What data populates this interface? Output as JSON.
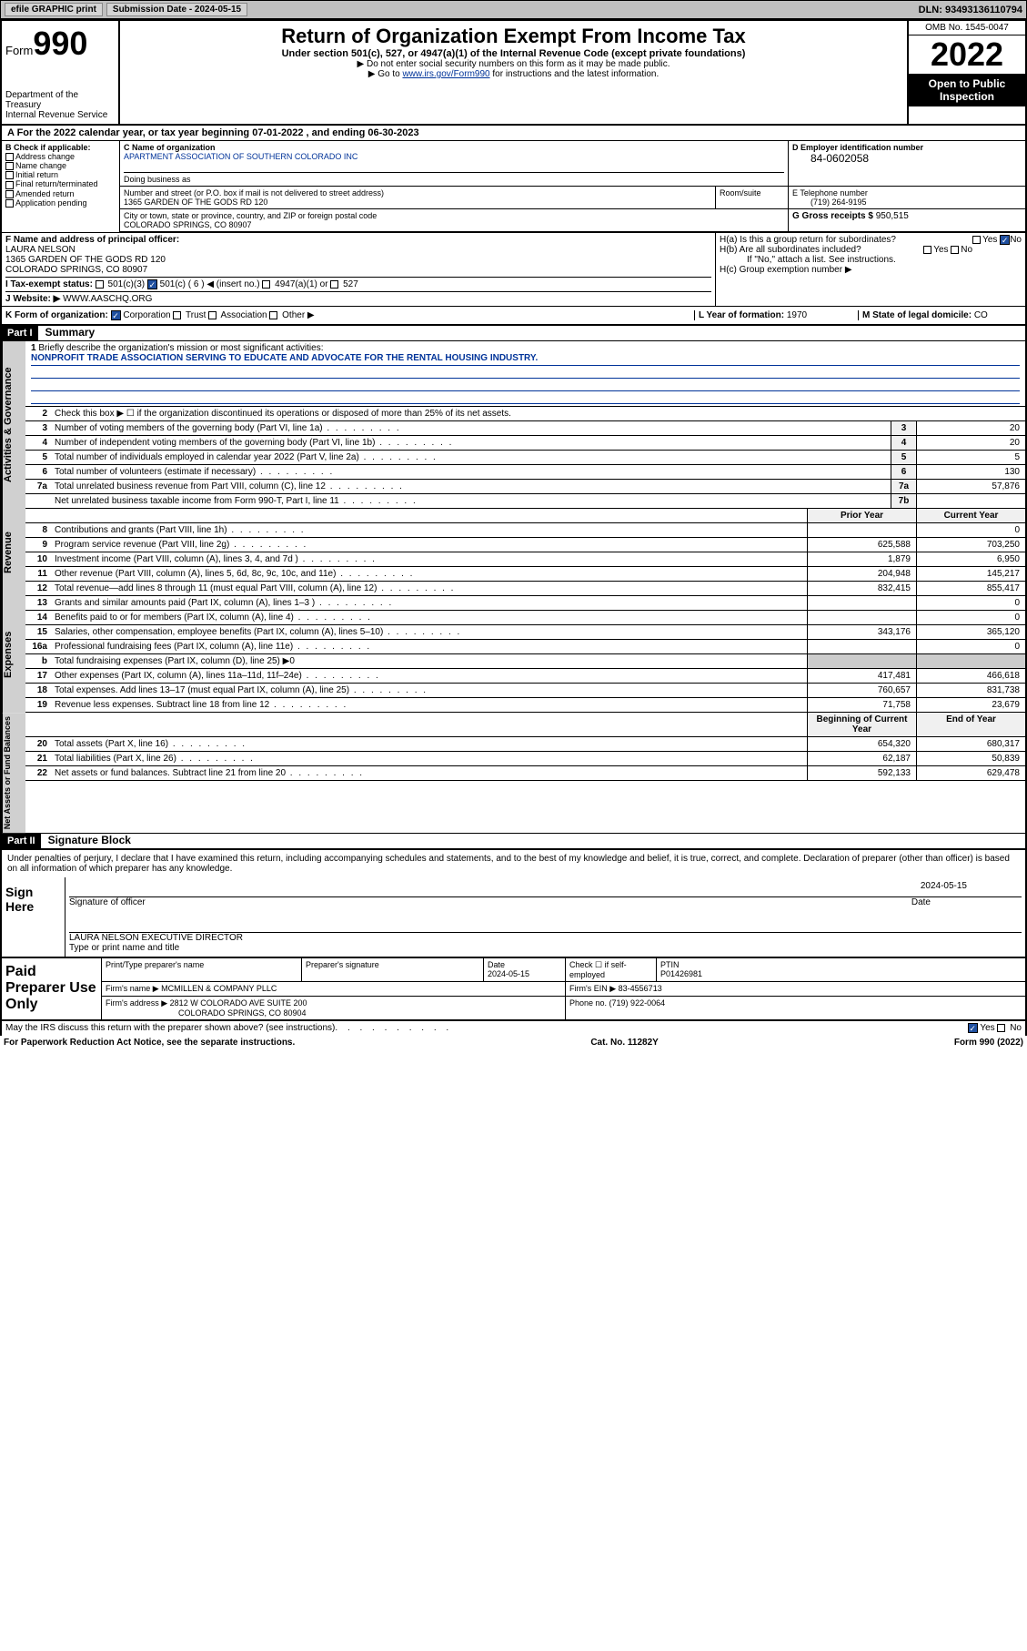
{
  "topbar": {
    "efile": "efile GRAPHIC print",
    "subdate_label": "Submission Date - ",
    "subdate": "2024-05-15",
    "dln_label": "DLN: ",
    "dln": "93493136110794"
  },
  "header": {
    "form_prefix": "Form",
    "form_num": "990",
    "dept": "Department of the Treasury\nInternal Revenue Service",
    "title": "Return of Organization Exempt From Income Tax",
    "sub": "Under section 501(c), 527, or 4947(a)(1) of the Internal Revenue Code (except private foundations)",
    "note1": "▶ Do not enter social security numbers on this form as it may be made public.",
    "note2_pre": "▶ Go to ",
    "note2_link": "www.irs.gov/Form990",
    "note2_post": " for instructions and the latest information.",
    "omb": "OMB No. 1545-0047",
    "year": "2022",
    "open": "Open to Public Inspection"
  },
  "A": {
    "text_pre": "A For the 2022 calendar year, or tax year beginning ",
    "begin": "07-01-2022",
    "mid": " , and ending ",
    "end": "06-30-2023"
  },
  "B": {
    "hdr": "B Check if applicable:",
    "items": [
      "Address change",
      "Name change",
      "Initial return",
      "Final return/terminated",
      "Amended return",
      "Application pending"
    ]
  },
  "C": {
    "name_lbl": "C Name of organization",
    "name": "APARTMENT ASSOCIATION OF SOUTHERN COLORADO INC",
    "dba_lbl": "Doing business as",
    "dba": "",
    "street_lbl": "Number and street (or P.O. box if mail is not delivered to street address)",
    "street": "1365 GARDEN OF THE GODS RD 120",
    "room_lbl": "Room/suite",
    "room": "",
    "city_lbl": "City or town, state or province, country, and ZIP or foreign postal code",
    "city": "COLORADO SPRINGS, CO  80907"
  },
  "D": {
    "lbl": "D Employer identification number",
    "val": "84-0602058"
  },
  "E": {
    "lbl": "E Telephone number",
    "val": "(719) 264-9195"
  },
  "G": {
    "lbl": "G Gross receipts $ ",
    "val": "950,515"
  },
  "F": {
    "lbl": "F  Name and address of principal officer:",
    "name": "LAURA NELSON",
    "addr1": "1365 GARDEN OF THE GODS RD 120",
    "addr2": "COLORADO SPRINGS, CO  80907"
  },
  "H": {
    "a": "H(a)  Is this a group return for subordinates?",
    "b": "H(b)  Are all subordinates included?",
    "bnote": "If \"No,\" attach a list. See instructions.",
    "c": "H(c)  Group exemption number ▶",
    "yes": "Yes",
    "no": "No"
  },
  "I": {
    "lbl": "I    Tax-exempt status:",
    "o1": "501(c)(3)",
    "o2": "501(c) ( 6 ) ◀ (insert no.)",
    "o3": "4947(a)(1) or",
    "o4": "527"
  },
  "J": {
    "lbl": "J    Website: ▶",
    "val": "WWW.AASCHQ.ORG"
  },
  "K": {
    "lbl": "K Form of organization:",
    "o1": "Corporation",
    "o2": "Trust",
    "o3": "Association",
    "o4": "Other ▶"
  },
  "L": {
    "lbl": "L Year of formation: ",
    "val": "1970"
  },
  "M": {
    "lbl": "M State of legal domicile: ",
    "val": "CO"
  },
  "part1": {
    "bar": "Part I",
    "title": "Summary"
  },
  "summary": {
    "l1": "Briefly describe the organization's mission or most significant activities:",
    "mission": "NONPROFIT TRADE ASSOCIATION SERVING TO EDUCATE AND ADVOCATE FOR THE RENTAL HOUSING INDUSTRY.",
    "l2": "Check this box ▶ ☐  if the organization discontinued its operations or disposed of more than 25% of its net assets.",
    "prior": "Prior Year",
    "current": "Current Year",
    "boy": "Beginning of Current Year",
    "eoy": "End of Year"
  },
  "lines": {
    "gov": [
      {
        "n": "3",
        "d": "Number of voting members of the governing body (Part VI, line 1a)",
        "c": "3",
        "v": "20"
      },
      {
        "n": "4",
        "d": "Number of independent voting members of the governing body (Part VI, line 1b)",
        "c": "4",
        "v": "20"
      },
      {
        "n": "5",
        "d": "Total number of individuals employed in calendar year 2022 (Part V, line 2a)",
        "c": "5",
        "v": "5"
      },
      {
        "n": "6",
        "d": "Total number of volunteers (estimate if necessary)",
        "c": "6",
        "v": "130"
      },
      {
        "n": "7a",
        "d": "Total unrelated business revenue from Part VIII, column (C), line 12",
        "c": "7a",
        "v": "57,876"
      },
      {
        "n": "",
        "d": "Net unrelated business taxable income from Form 990-T, Part I, line 11",
        "c": "7b",
        "v": ""
      }
    ],
    "rev": [
      {
        "n": "8",
        "d": "Contributions and grants (Part VIII, line 1h)",
        "p": "",
        "v": "0"
      },
      {
        "n": "9",
        "d": "Program service revenue (Part VIII, line 2g)",
        "p": "625,588",
        "v": "703,250"
      },
      {
        "n": "10",
        "d": "Investment income (Part VIII, column (A), lines 3, 4, and 7d )",
        "p": "1,879",
        "v": "6,950"
      },
      {
        "n": "11",
        "d": "Other revenue (Part VIII, column (A), lines 5, 6d, 8c, 9c, 10c, and 11e)",
        "p": "204,948",
        "v": "145,217"
      },
      {
        "n": "12",
        "d": "Total revenue—add lines 8 through 11 (must equal Part VIII, column (A), line 12)",
        "p": "832,415",
        "v": "855,417"
      }
    ],
    "exp": [
      {
        "n": "13",
        "d": "Grants and similar amounts paid (Part IX, column (A), lines 1–3 )",
        "p": "",
        "v": "0"
      },
      {
        "n": "14",
        "d": "Benefits paid to or for members (Part IX, column (A), line 4)",
        "p": "",
        "v": "0"
      },
      {
        "n": "15",
        "d": "Salaries, other compensation, employee benefits (Part IX, column (A), lines 5–10)",
        "p": "343,176",
        "v": "365,120"
      },
      {
        "n": "16a",
        "d": "Professional fundraising fees (Part IX, column (A), line 11e)",
        "p": "",
        "v": "0"
      },
      {
        "n": "b",
        "d": "Total fundraising expenses (Part IX, column (D), line 25) ▶0",
        "p": "",
        "v": "",
        "noval": true
      },
      {
        "n": "17",
        "d": "Other expenses (Part IX, column (A), lines 11a–11d, 11f–24e)",
        "p": "417,481",
        "v": "466,618"
      },
      {
        "n": "18",
        "d": "Total expenses. Add lines 13–17 (must equal Part IX, column (A), line 25)",
        "p": "760,657",
        "v": "831,738"
      },
      {
        "n": "19",
        "d": "Revenue less expenses. Subtract line 18 from line 12",
        "p": "71,758",
        "v": "23,679"
      }
    ],
    "net": [
      {
        "n": "20",
        "d": "Total assets (Part X, line 16)",
        "p": "654,320",
        "v": "680,317"
      },
      {
        "n": "21",
        "d": "Total liabilities (Part X, line 26)",
        "p": "62,187",
        "v": "50,839"
      },
      {
        "n": "22",
        "d": "Net assets or fund balances. Subtract line 21 from line 20",
        "p": "592,133",
        "v": "629,478"
      }
    ]
  },
  "part2": {
    "bar": "Part II",
    "title": "Signature Block"
  },
  "sig": {
    "decl": "Under penalties of perjury, I declare that I have examined this return, including accompanying schedules and statements, and to the best of my knowledge and belief, it is true, correct, and complete. Declaration of preparer (other than officer) is based on all information of which preparer has any knowledge.",
    "here": "Sign Here",
    "sigoff": "Signature of officer",
    "date": "Date",
    "dateval": "2024-05-15",
    "name": "LAURA NELSON  EXECUTIVE DIRECTOR",
    "namelbl": "Type or print name and title"
  },
  "paid": {
    "lbl": "Paid Preparer Use Only",
    "h1": "Print/Type preparer's name",
    "h2": "Preparer's signature",
    "h3": "Date",
    "h3v": "2024-05-15",
    "h4": "Check ☐ if self-employed",
    "h5": "PTIN",
    "h5v": "P01426981",
    "firm_lbl": "Firm's name    ▶",
    "firm": "MCMILLEN & COMPANY PLLC",
    "ein_lbl": "Firm's EIN ▶",
    "ein": "83-4556713",
    "addr_lbl": "Firm's address ▶",
    "addr1": "2812 W COLORADO AVE SUITE 200",
    "addr2": "COLORADO SPRINGS, CO  80904",
    "phone_lbl": "Phone no. ",
    "phone": "(719) 922-0064"
  },
  "footer": {
    "discuss": "May the IRS discuss this return with the preparer shown above? (see instructions)",
    "yes": "Yes",
    "no": "No",
    "pra": "For Paperwork Reduction Act Notice, see the separate instructions.",
    "cat": "Cat. No. 11282Y",
    "form": "Form 990 (2022)"
  },
  "colors": {
    "link": "#003399",
    "checked": "#2050a0",
    "vtab": "#d0d0d0"
  }
}
